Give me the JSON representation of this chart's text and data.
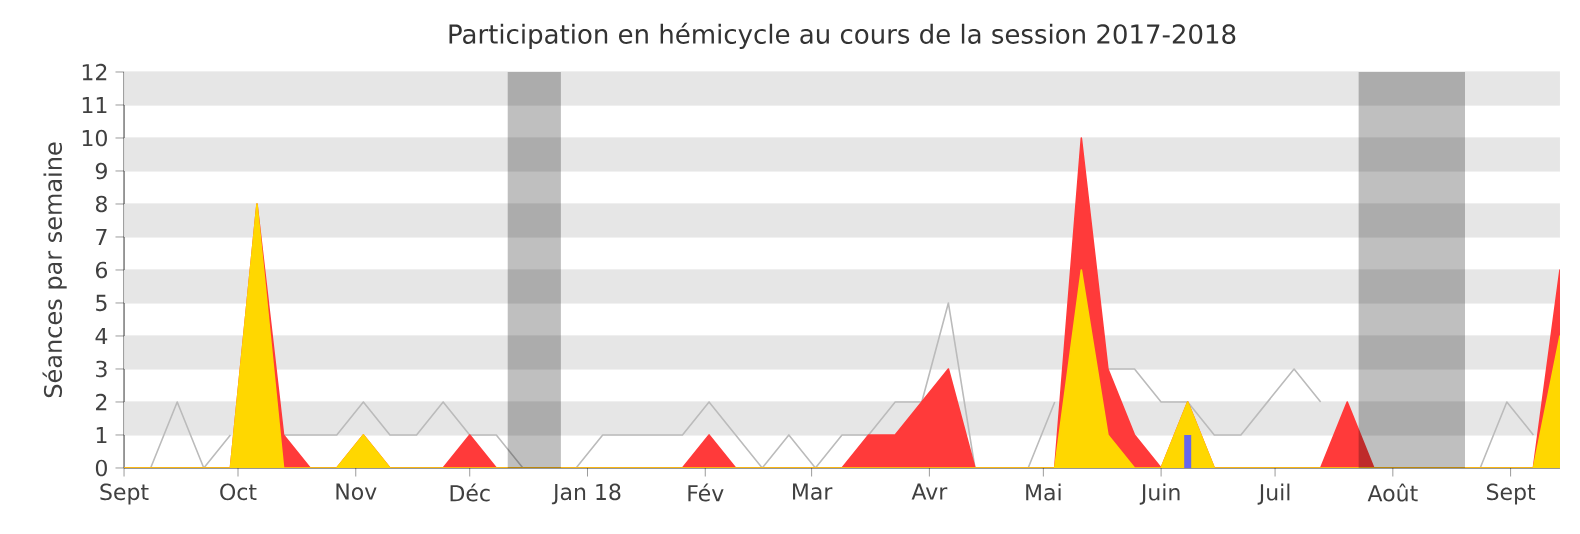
{
  "chart_data": {
    "type": "area",
    "title": "Participation en hémicycle au cours de la session 2017-2018",
    "ylabel": "Séances par semaine",
    "x": [
      "2017-09-01",
      "2017-09-08",
      "2017-09-15",
      "2017-09-22",
      "2017-09-29",
      "2017-10-06",
      "2017-10-13",
      "2017-10-20",
      "2017-10-27",
      "2017-11-03",
      "2017-11-10",
      "2017-11-17",
      "2017-11-24",
      "2017-12-01",
      "2017-12-08",
      "2017-12-15",
      "2017-12-22",
      "2017-12-29",
      "2018-01-05",
      "2018-01-12",
      "2018-01-19",
      "2018-01-26",
      "2018-02-02",
      "2018-02-09",
      "2018-02-16",
      "2018-02-23",
      "2018-03-02",
      "2018-03-09",
      "2018-03-16",
      "2018-03-23",
      "2018-03-30",
      "2018-04-06",
      "2018-04-13",
      "2018-04-20",
      "2018-04-27",
      "2018-05-04",
      "2018-05-11",
      "2018-05-18",
      "2018-05-25",
      "2018-06-01",
      "2018-06-08",
      "2018-06-15",
      "2018-06-22",
      "2018-06-29",
      "2018-07-06",
      "2018-07-13",
      "2018-07-20",
      "2018-07-27",
      "2018-08-03",
      "2018-08-10",
      "2018-08-17",
      "2018-08-24",
      "2018-08-31",
      "2018-09-07",
      "2018-09-14"
    ],
    "xlim": [
      "2017-09-01",
      "2018-09-14"
    ],
    "ylim": [
      0,
      12
    ],
    "yticks": [
      0,
      1,
      2,
      3,
      4,
      5,
      6,
      7,
      8,
      9,
      10,
      11,
      12
    ],
    "xticks": [
      {
        "value": "2017-09-01",
        "label": "Sept"
      },
      {
        "value": "2017-10-01",
        "label": "Oct"
      },
      {
        "value": "2017-11-01",
        "label": "Nov"
      },
      {
        "value": "2017-12-01",
        "label": "Déc"
      },
      {
        "value": "2018-01-01",
        "label": "Jan 18"
      },
      {
        "value": "2018-02-01",
        "label": "Fév"
      },
      {
        "value": "2018-03-01",
        "label": "Mar"
      },
      {
        "value": "2018-04-01",
        "label": "Avr"
      },
      {
        "value": "2018-05-01",
        "label": "Mai"
      },
      {
        "value": "2018-06-01",
        "label": "Juin"
      },
      {
        "value": "2018-07-01",
        "label": "Juil"
      },
      {
        "value": "2018-08-01",
        "label": "Août"
      },
      {
        "value": "2018-09-01",
        "label": "Sept"
      }
    ],
    "grid": "y",
    "bands": [
      {
        "axis": "x",
        "from": "2017-12-11",
        "to": "2017-12-25"
      },
      {
        "axis": "x",
        "from": "2018-07-23",
        "to": "2018-08-20"
      }
    ],
    "series": [
      {
        "type": "line",
        "color": "#bbbbbb",
        "values": [
          0,
          0,
          2,
          0,
          1,
          null,
          1,
          1,
          1,
          2,
          1,
          1,
          2,
          1,
          1,
          0,
          null,
          0,
          1,
          1,
          1,
          1,
          2,
          1,
          0,
          1,
          0,
          1,
          1,
          2,
          2,
          5,
          0,
          0,
          0,
          2,
          null,
          3,
          3,
          2,
          2,
          1,
          1,
          2,
          3,
          2,
          null,
          null,
          null,
          null,
          null,
          0,
          2,
          1,
          null
        ]
      },
      {
        "color": "#ff3a3a",
        "values": [
          0,
          0,
          0,
          0,
          0,
          8,
          1,
          0,
          0,
          1,
          0,
          0,
          0,
          1,
          0,
          0,
          0,
          0,
          0,
          0,
          0,
          0,
          1,
          0,
          0,
          0,
          0,
          0,
          1,
          1,
          2,
          3,
          0,
          0,
          0,
          0,
          10,
          3,
          1,
          0,
          2,
          0,
          0,
          0,
          0,
          0,
          2,
          0,
          0,
          0,
          0,
          0,
          0,
          0,
          6
        ]
      },
      {
        "color": "#ffd700",
        "values": [
          0,
          0,
          0,
          0,
          0,
          8,
          0,
          0,
          0,
          1,
          0,
          0,
          0,
          0,
          0,
          0,
          0,
          0,
          0,
          0,
          0,
          0,
          0,
          0,
          0,
          0,
          0,
          0,
          0,
          0,
          0,
          0,
          0,
          0,
          0,
          0,
          6,
          1,
          0,
          0,
          2,
          0,
          0,
          0,
          0,
          0,
          0,
          0,
          0,
          0,
          0,
          0,
          0,
          0,
          4
        ]
      },
      {
        "type": "bar",
        "color": "#6666ee",
        "values": [
          null,
          null,
          null,
          null,
          null,
          null,
          null,
          null,
          null,
          null,
          null,
          null,
          null,
          null,
          null,
          null,
          null,
          null,
          null,
          null,
          null,
          null,
          null,
          null,
          null,
          null,
          null,
          null,
          null,
          null,
          null,
          null,
          null,
          null,
          null,
          null,
          null,
          null,
          null,
          null,
          1,
          null,
          null,
          null,
          null,
          null,
          null,
          null,
          null,
          null,
          null,
          null,
          null,
          null,
          null
        ]
      }
    ]
  }
}
